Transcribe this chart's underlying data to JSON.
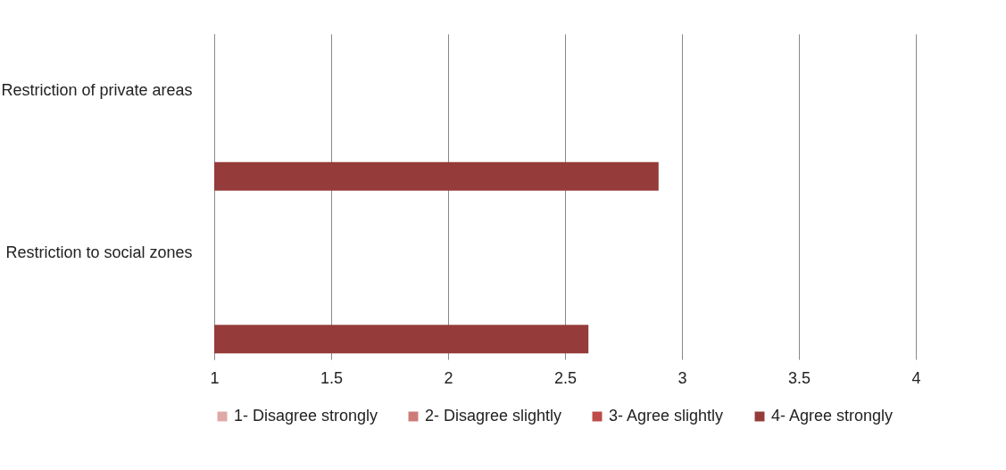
{
  "chart_data": {
    "type": "bar",
    "orientation": "horizontal",
    "categories": [
      "Restriction of private areas",
      "Restriction to social zones"
    ],
    "series": [
      {
        "name": "1- Disagree strongly",
        "color": "#dfa9a8",
        "values": [
          null,
          null
        ]
      },
      {
        "name": "2- Disagree slightly",
        "color": "#cd7b79",
        "values": [
          null,
          null
        ]
      },
      {
        "name": "3- Agree slightly",
        "color": "#bf4b48",
        "values": [
          null,
          null
        ]
      },
      {
        "name": "4- Agree strongly",
        "color": "#953b39",
        "values": [
          2.9,
          2.6
        ]
      }
    ],
    "xlim": [
      1,
      4
    ],
    "xticks": [
      1,
      1.5,
      2,
      2.5,
      3,
      3.5,
      4
    ],
    "grid": "x",
    "legend": "bottom"
  }
}
